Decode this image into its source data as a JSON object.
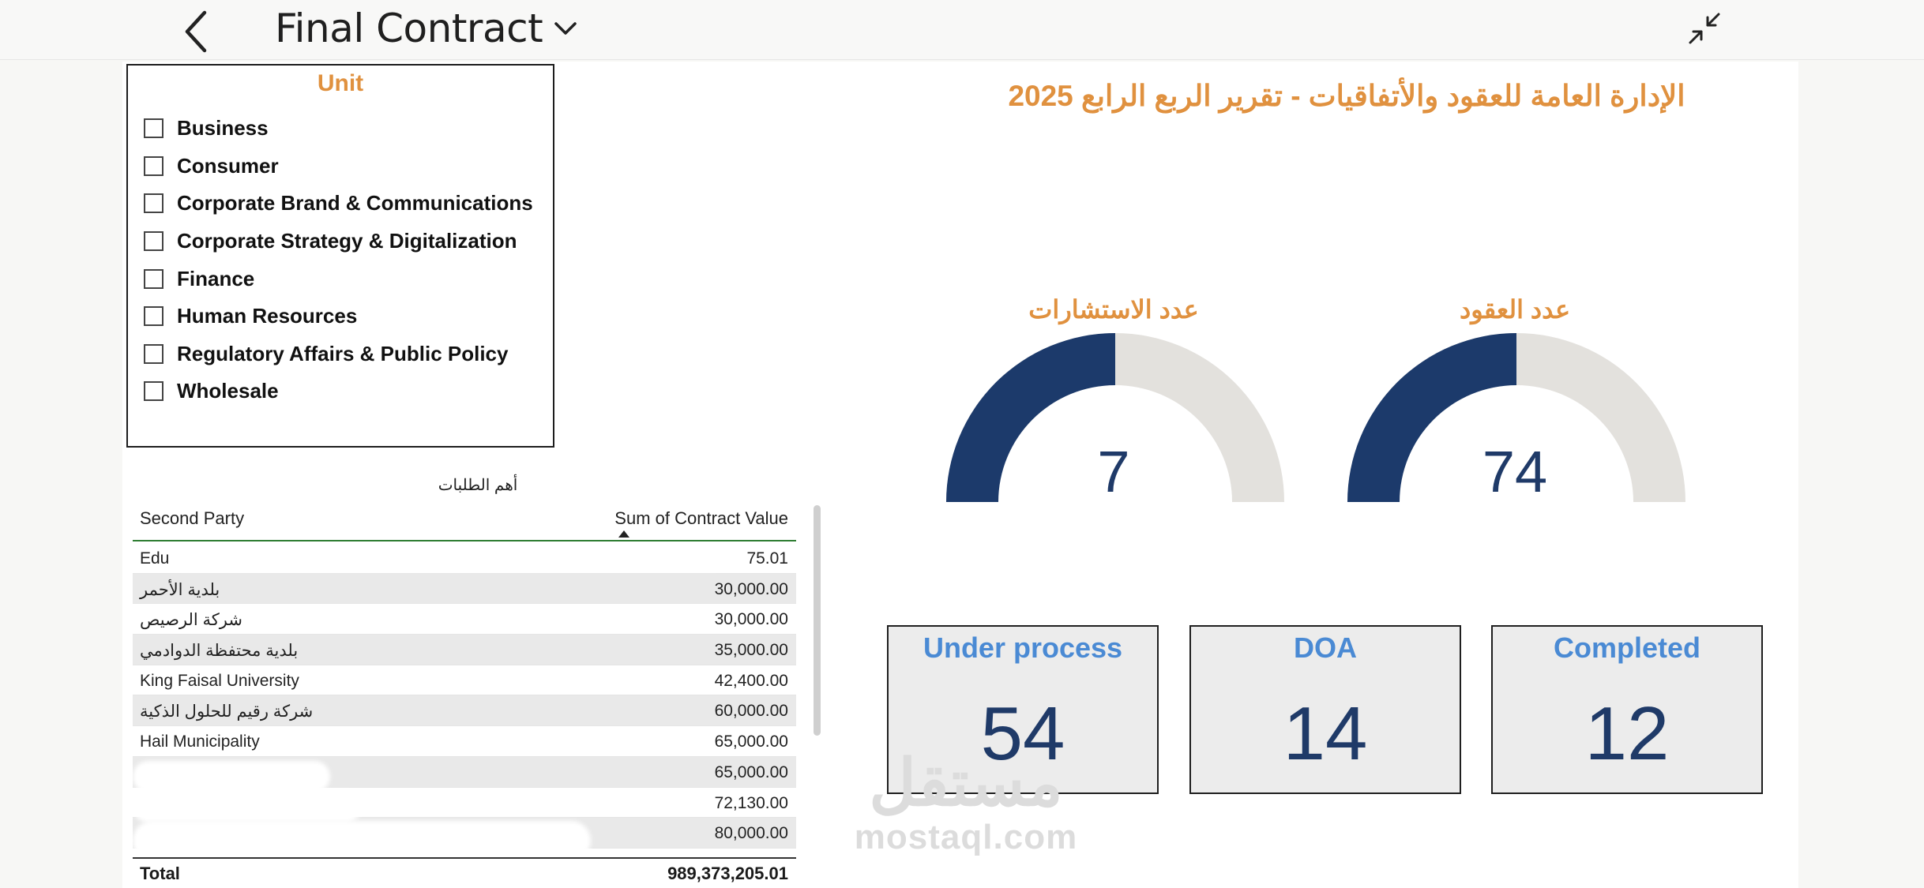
{
  "header": {
    "title": "Final Contract"
  },
  "slicer": {
    "title": "Unit",
    "items": [
      {
        "label": "Business",
        "checked": false
      },
      {
        "label": "Consumer",
        "checked": false
      },
      {
        "label": "Corporate Brand & Communications",
        "checked": false
      },
      {
        "label": "Corporate Strategy & Digitalization",
        "checked": false
      },
      {
        "label": "Finance",
        "checked": false
      },
      {
        "label": "Human Resources",
        "checked": false
      },
      {
        "label": "Regulatory Affairs & Public Policy",
        "checked": false
      },
      {
        "label": "Wholesale",
        "checked": false
      }
    ]
  },
  "dashboard": {
    "title": "الإدارة العامة للعقود والأتفاقيات - تقرير الربع الرابع 2025"
  },
  "gauges": [
    {
      "label": "عدد الاستشارات",
      "value": "7",
      "fill_fraction": 0.5
    },
    {
      "label": "عدد العقود",
      "value": "74",
      "fill_fraction": 0.5
    }
  ],
  "cards": [
    {
      "title": "Under process",
      "value": "54"
    },
    {
      "title": "DOA",
      "value": "14"
    },
    {
      "title": "Completed",
      "value": "12"
    }
  ],
  "table": {
    "title": "أهم الطلبات",
    "col_left": "Second Party",
    "col_right": "Sum of Contract Value",
    "rows": [
      {
        "party": "Edu",
        "value": "75.01"
      },
      {
        "party": "بلدية الأحمر",
        "value": "30,000.00"
      },
      {
        "party": "شركة الرصيص",
        "value": "30,000.00"
      },
      {
        "party": "بلدية محتفظة الدوادمي",
        "value": "35,000.00"
      },
      {
        "party": "King Faisal University",
        "value": "42,400.00"
      },
      {
        "party": "شركة رقيم للحلول الذكية",
        "value": "60,000.00"
      },
      {
        "party": "Hail Municipality",
        "value": "65,000.00"
      },
      {
        "party": "",
        "value": "65,000.00"
      },
      {
        "party": "",
        "value": "72,130.00"
      },
      {
        "party": "",
        "value": "80,000.00"
      }
    ],
    "total_label": "Total",
    "total_value": "989,373,205.01"
  },
  "watermark": {
    "arabic": "مستقل",
    "latin": "mostaql.com"
  },
  "colors": {
    "accent_orange": "#e0913f",
    "navy": "#1f3a68",
    "card_title_blue": "#4a8ad4",
    "gauge_track": "#e3e1dd"
  },
  "icons": {
    "back": "chevron-left-icon",
    "title_dropdown": "chevron-down-icon",
    "collapse": "collapse-arrows-icon"
  }
}
